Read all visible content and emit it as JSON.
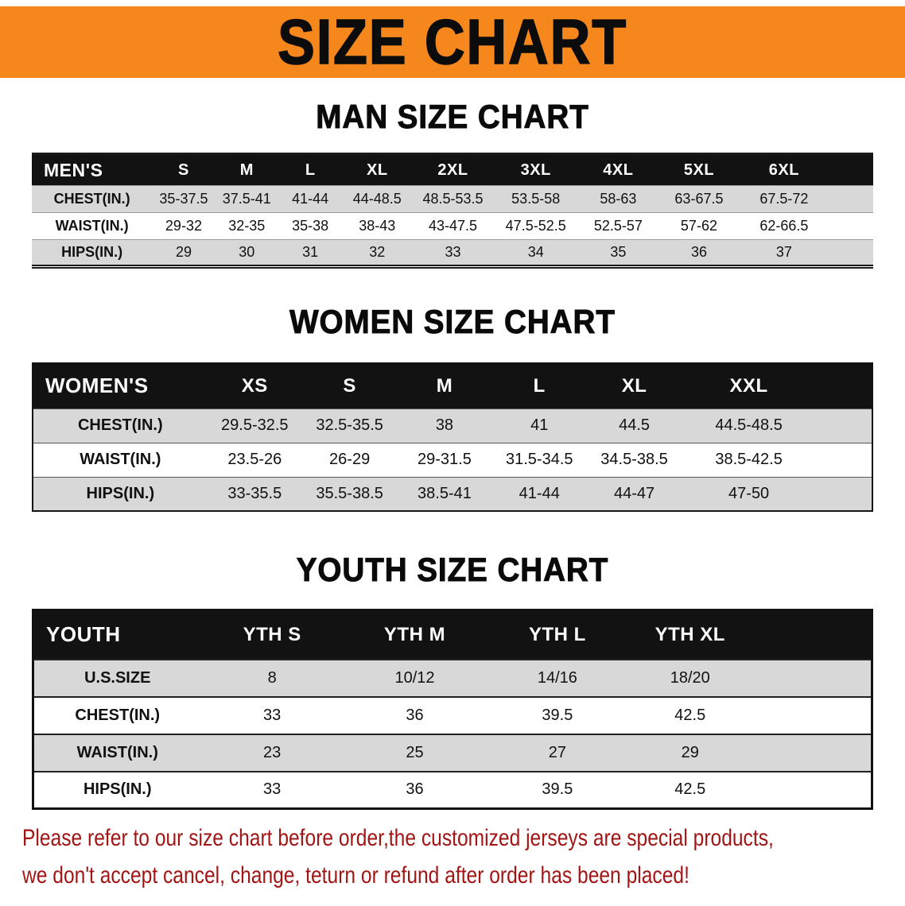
{
  "banner": {
    "title": "SIZE CHART"
  },
  "colors": {
    "banner_bg": "#F6871C",
    "table_header_bg": "#121212",
    "row_stripe": "#D8D8D8",
    "note_color": "#A31515"
  },
  "sections": {
    "men": {
      "heading": "MAN SIZE CHART",
      "table": {
        "columns": [
          "MEN'S",
          "S",
          "M",
          "L",
          "XL",
          "2XL",
          "3XL",
          "4XL",
          "5XL",
          "6XL"
        ],
        "rows": [
          [
            "CHEST(IN.)",
            "35-37.5",
            "37.5-41",
            "41-44",
            "44-48.5",
            "48.5-53.5",
            "53.5-58",
            "58-63",
            "63-67.5",
            "67.5-72"
          ],
          [
            "WAIST(IN.)",
            "29-32",
            "32-35",
            "35-38",
            "38-43",
            "43-47.5",
            "47.5-52.5",
            "52.5-57",
            "57-62",
            "62-66.5"
          ],
          [
            "HIPS(IN.)",
            "29",
            "30",
            "31",
            "32",
            "33",
            "34",
            "35",
            "36",
            "37"
          ]
        ]
      }
    },
    "women": {
      "heading": "WOMEN SIZE CHART",
      "table": {
        "columns": [
          "WOMEN'S",
          "XS",
          "S",
          "M",
          "L",
          "XL",
          "XXL"
        ],
        "rows": [
          [
            "CHEST(IN.)",
            "29.5-32.5",
            "32.5-35.5",
            "38",
            "41",
            "44.5",
            "44.5-48.5"
          ],
          [
            "WAIST(IN.)",
            "23.5-26",
            "26-29",
            "29-31.5",
            "31.5-34.5",
            "34.5-38.5",
            "38.5-42.5"
          ],
          [
            "HIPS(IN.)",
            "33-35.5",
            "35.5-38.5",
            "38.5-41",
            "41-44",
            "44-47",
            "47-50"
          ]
        ]
      }
    },
    "youth": {
      "heading": "YOUTH SIZE CHART",
      "table": {
        "columns": [
          "YOUTH",
          "YTH S",
          "YTH M",
          "YTH L",
          "YTH XL"
        ],
        "rows": [
          [
            "U.S.SIZE",
            "8",
            "10/12",
            "14/16",
            "18/20"
          ],
          [
            "CHEST(IN.)",
            "33",
            "36",
            "39.5",
            "42.5"
          ],
          [
            "WAIST(IN.)",
            "23",
            "25",
            "27",
            "29"
          ],
          [
            "HIPS(IN.)",
            "33",
            "36",
            "39.5",
            "42.5"
          ]
        ]
      }
    }
  },
  "note": {
    "line1": "Please refer to our size chart before order,the customized jerseys are special products,",
    "line2": "we don't accept cancel, change, teturn or refund after order has been placed!"
  }
}
